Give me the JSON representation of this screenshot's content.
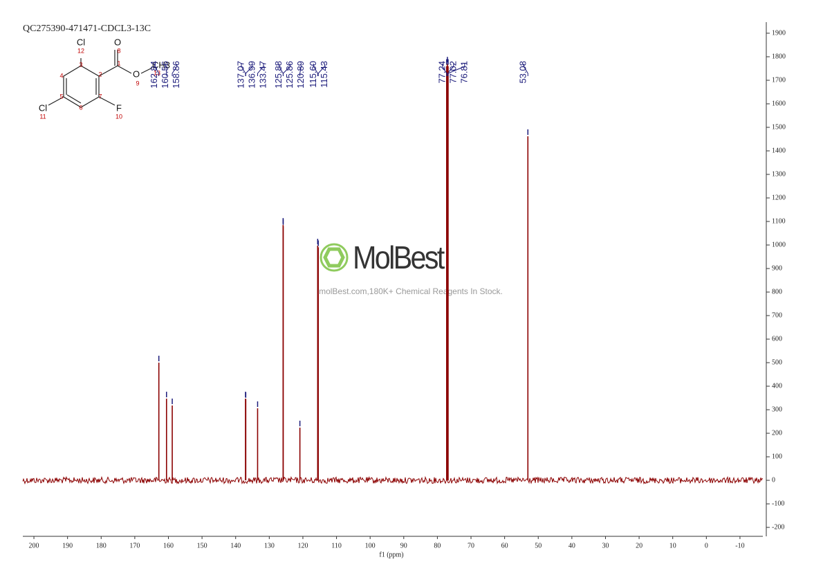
{
  "chart_data": {
    "type": "spectrum",
    "title": "QC275390-471471-CDCL3-13C",
    "xlabel": "f1 (ppm)",
    "x": [
      162.84,
      160.56,
      158.86,
      137.07,
      136.99,
      133.47,
      125.88,
      125.86,
      120.89,
      115.6,
      115.43,
      77.24,
      77.02,
      76.81,
      53.08
    ],
    "x_labels": [
      "162.84",
      "160.56",
      "158.86",
      "137.07",
      "136.99",
      "133.47",
      "125.88",
      "125.86",
      "120.89",
      "115.60",
      "115.43",
      "77.24",
      "77.02",
      "76.81",
      "53.08"
    ],
    "values": [
      500,
      347,
      318,
      347,
      345,
      306,
      1085,
      1080,
      224,
      997,
      990,
      1760,
      1770,
      1760,
      1462
    ],
    "color": "#8b0000",
    "label_color": "#1a1a7a",
    "xlim": [
      203.3,
      -16.8
    ],
    "xticks": [
      200,
      190,
      180,
      170,
      160,
      150,
      140,
      130,
      120,
      110,
      100,
      90,
      80,
      70,
      60,
      50,
      40,
      30,
      20,
      10,
      0,
      -10
    ],
    "ylim": [
      -238,
      1947
    ],
    "yticks": [
      -200,
      -100,
      0,
      100,
      200,
      300,
      400,
      500,
      600,
      700,
      800,
      900,
      1000,
      1100,
      1200,
      1300,
      1400,
      1500,
      1600,
      1700,
      1800,
      1900
    ]
  },
  "structure": {
    "atoms": [
      "Cl",
      "O",
      "O",
      "CH3",
      "F",
      "Cl"
    ],
    "numbers": [
      "1",
      "2",
      "3",
      "4",
      "5",
      "6",
      "7",
      "8",
      "9",
      "10",
      "11",
      "12",
      "13"
    ]
  },
  "watermark": {
    "brand": "MolBest",
    "tagline": "molBest.com,180K+ Chemical Reagents In Stock."
  }
}
